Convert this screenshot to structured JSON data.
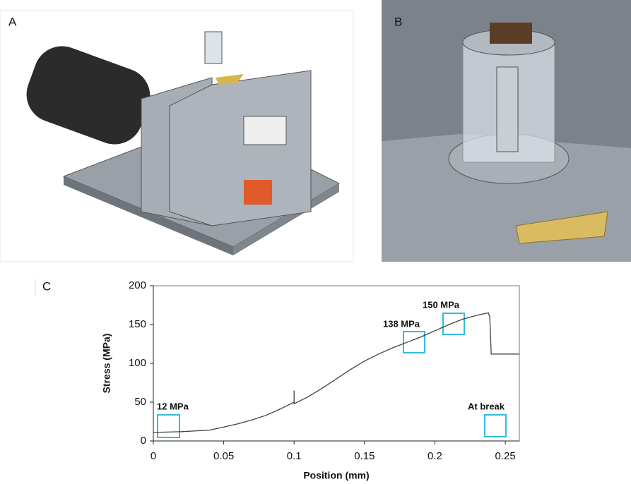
{
  "panels": {
    "a": "A",
    "b": "B",
    "c": "C"
  },
  "chart_data": {
    "type": "line",
    "xlabel": "Position (mm)",
    "ylabel": "Stress (MPa)",
    "x": [
      0,
      0.02,
      0.04,
      0.05,
      0.06,
      0.07,
      0.08,
      0.09,
      0.1,
      0.1,
      0.1,
      0.11,
      0.12,
      0.13,
      0.14,
      0.15,
      0.16,
      0.17,
      0.18,
      0.19,
      0.2,
      0.21,
      0.22,
      0.23,
      0.238,
      0.239,
      0.24,
      0.26
    ],
    "values": [
      11,
      12,
      14,
      18,
      22,
      27,
      33,
      41,
      50,
      65,
      48,
      57,
      68,
      80,
      92,
      103,
      112,
      120,
      127,
      134,
      142,
      150,
      157,
      162,
      165,
      160,
      112,
      112
    ],
    "color": "#404040",
    "xlim": [
      0,
      0.26
    ],
    "ylim": [
      0,
      200
    ],
    "xticks": [
      0,
      0.05,
      0.1,
      0.15,
      0.2,
      0.25
    ],
    "yticks": [
      0,
      50,
      100,
      150,
      200
    ],
    "annotations": [
      "12 MPa",
      "138 MPa",
      "150 MPa",
      "At break"
    ],
    "annotation_color": "#33bbdd"
  }
}
